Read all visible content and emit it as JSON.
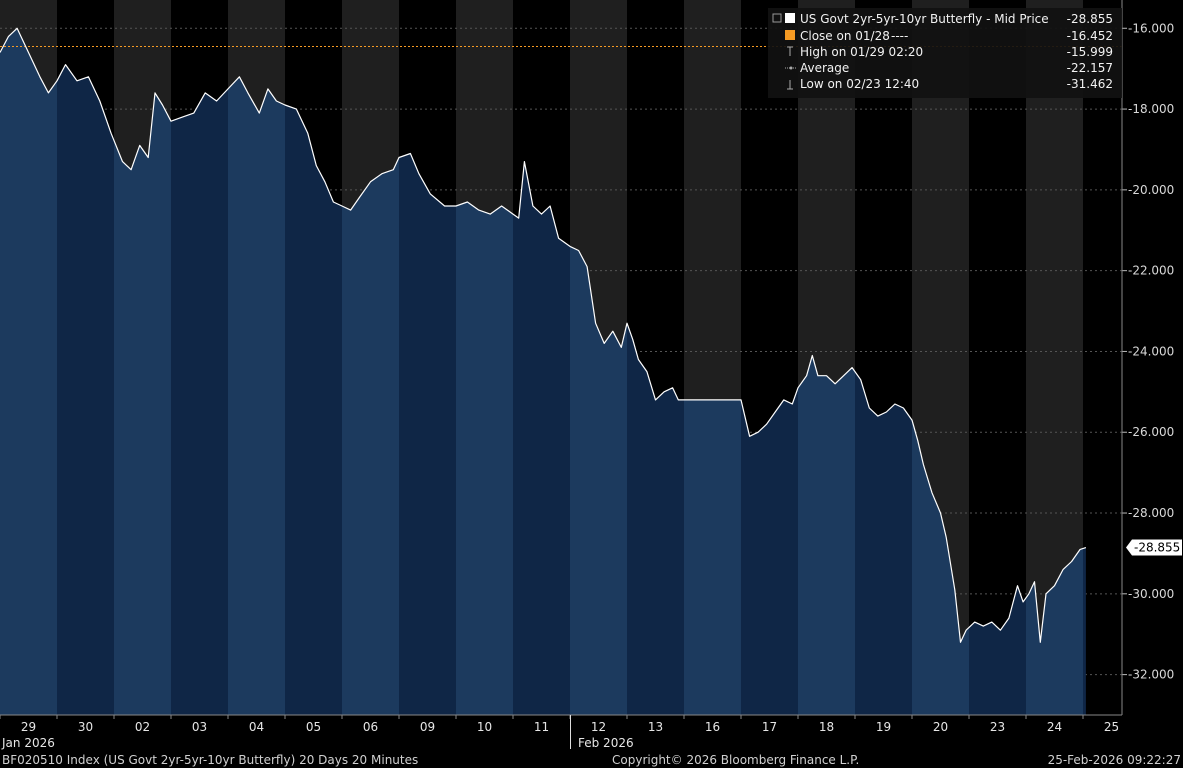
{
  "colors": {
    "background": "#000000",
    "band_even": "#1f1f1f",
    "band_odd": "#000000",
    "area_fill": "#0f2646",
    "area_fill_light": "#1c3a5e",
    "line": "#ffffff",
    "close_line": "#f59a23",
    "grid": "#555555"
  },
  "legend": {
    "title": "US Govt 2yr-5yr-10yr Butterfly - Mid Price",
    "title_value": "-28.855",
    "close_label": "Close on 01/28",
    "close_dash": "----",
    "close_value": "-16.452",
    "high_label": "High on 01/29 02:20",
    "high_value": "-15.999",
    "average_label": "Average",
    "average_value": "-22.157",
    "low_label": "Low on 02/23 12:40",
    "low_value": "-31.462"
  },
  "last_value_tag": "-28.855",
  "footer": {
    "left": "BF020510 Index (US Govt 2yr-5yr-10yr Butterfly) 20 Days 20 Minutes",
    "center": "Copyright© 2026 Bloomberg Finance L.P.",
    "right": "25-Feb-2026 09:22:27"
  },
  "chart_data": {
    "type": "line",
    "title": "US Govt 2yr-5yr-10yr Butterfly - Mid Price",
    "ylim": [
      -33,
      -15.3
    ],
    "y_ticks": [
      -16,
      -18,
      -20,
      -22,
      -24,
      -26,
      -28,
      -30,
      -32
    ],
    "y_tick_labels": [
      "-16.000",
      "-18.000",
      "-20.000",
      "-22.000",
      "-24.000",
      "-26.000",
      "-28.000",
      "-30.000",
      "-32.000"
    ],
    "close_level": -16.452,
    "grid": true,
    "legend_position": "top-right",
    "days": [
      "29",
      "30",
      "02",
      "03",
      "04",
      "05",
      "06",
      "09",
      "10",
      "11",
      "12",
      "13",
      "16",
      "17",
      "18",
      "19",
      "20",
      "23",
      "24",
      "25"
    ],
    "month_labels": [
      {
        "label": "Jan 2026",
        "day_index": 0
      },
      {
        "label": "Feb 2026",
        "day_index": 10
      }
    ],
    "series": [
      {
        "name": "US Govt 2yr-5yr-10yr Butterfly - Mid Price",
        "points": [
          [
            0.0,
            -16.6
          ],
          [
            0.15,
            -16.2
          ],
          [
            0.3,
            -16.0
          ],
          [
            0.5,
            -16.6
          ],
          [
            0.7,
            -17.2
          ],
          [
            0.85,
            -17.6
          ],
          [
            1.0,
            -17.3
          ],
          [
            1.15,
            -16.9
          ],
          [
            1.35,
            -17.3
          ],
          [
            1.55,
            -17.2
          ],
          [
            1.75,
            -17.8
          ],
          [
            1.95,
            -18.6
          ],
          [
            2.15,
            -19.3
          ],
          [
            2.3,
            -19.5
          ],
          [
            2.45,
            -18.9
          ],
          [
            2.6,
            -19.2
          ],
          [
            2.72,
            -17.6
          ],
          [
            2.85,
            -17.9
          ],
          [
            3.0,
            -18.3
          ],
          [
            3.2,
            -18.2
          ],
          [
            3.4,
            -18.1
          ],
          [
            3.6,
            -17.6
          ],
          [
            3.8,
            -17.8
          ],
          [
            4.0,
            -17.5
          ],
          [
            4.2,
            -17.2
          ],
          [
            4.35,
            -17.6
          ],
          [
            4.55,
            -18.1
          ],
          [
            4.7,
            -17.5
          ],
          [
            4.85,
            -17.8
          ],
          [
            5.0,
            -17.9
          ],
          [
            5.2,
            -18.0
          ],
          [
            5.4,
            -18.6
          ],
          [
            5.55,
            -19.4
          ],
          [
            5.7,
            -19.8
          ],
          [
            5.85,
            -20.3
          ],
          [
            6.0,
            -20.4
          ],
          [
            6.15,
            -20.5
          ],
          [
            6.3,
            -20.2
          ],
          [
            6.5,
            -19.8
          ],
          [
            6.7,
            -19.6
          ],
          [
            6.9,
            -19.5
          ],
          [
            7.0,
            -19.2
          ],
          [
            7.2,
            -19.1
          ],
          [
            7.35,
            -19.6
          ],
          [
            7.55,
            -20.1
          ],
          [
            7.8,
            -20.4
          ],
          [
            8.0,
            -20.4
          ],
          [
            8.2,
            -20.3
          ],
          [
            8.4,
            -20.5
          ],
          [
            8.6,
            -20.6
          ],
          [
            8.8,
            -20.4
          ],
          [
            9.0,
            -20.6
          ],
          [
            9.1,
            -20.7
          ],
          [
            9.2,
            -19.3
          ],
          [
            9.35,
            -20.4
          ],
          [
            9.5,
            -20.6
          ],
          [
            9.65,
            -20.4
          ],
          [
            9.8,
            -21.2
          ],
          [
            10.0,
            -21.4
          ],
          [
            10.15,
            -21.5
          ],
          [
            10.3,
            -21.9
          ],
          [
            10.45,
            -23.3
          ],
          [
            10.6,
            -23.8
          ],
          [
            10.75,
            -23.5
          ],
          [
            10.9,
            -23.9
          ],
          [
            11.0,
            -23.3
          ],
          [
            11.1,
            -23.7
          ],
          [
            11.2,
            -24.2
          ],
          [
            11.35,
            -24.5
          ],
          [
            11.5,
            -25.2
          ],
          [
            11.65,
            -25.0
          ],
          [
            11.8,
            -24.9
          ],
          [
            11.9,
            -25.2
          ],
          [
            12.0,
            -25.2
          ],
          [
            12.3,
            -25.2
          ],
          [
            12.6,
            -25.2
          ],
          [
            12.9,
            -25.2
          ],
          [
            13.0,
            -25.2
          ],
          [
            13.15,
            -26.1
          ],
          [
            13.3,
            -26.0
          ],
          [
            13.45,
            -25.8
          ],
          [
            13.6,
            -25.5
          ],
          [
            13.75,
            -25.2
          ],
          [
            13.9,
            -25.3
          ],
          [
            14.0,
            -24.9
          ],
          [
            14.15,
            -24.6
          ],
          [
            14.25,
            -24.1
          ],
          [
            14.35,
            -24.6
          ],
          [
            14.5,
            -24.6
          ],
          [
            14.65,
            -24.8
          ],
          [
            14.8,
            -24.6
          ],
          [
            14.95,
            -24.4
          ],
          [
            15.1,
            -24.7
          ],
          [
            15.25,
            -25.4
          ],
          [
            15.4,
            -25.6
          ],
          [
            15.55,
            -25.5
          ],
          [
            15.7,
            -25.3
          ],
          [
            15.85,
            -25.4
          ],
          [
            16.0,
            -25.7
          ],
          [
            16.1,
            -26.2
          ],
          [
            16.2,
            -26.8
          ],
          [
            16.35,
            -27.5
          ],
          [
            16.5,
            -28.0
          ],
          [
            16.6,
            -28.6
          ],
          [
            16.75,
            -29.9
          ],
          [
            16.85,
            -31.2
          ],
          [
            16.95,
            -30.9
          ],
          [
            17.1,
            -30.7
          ],
          [
            17.25,
            -30.8
          ],
          [
            17.4,
            -30.7
          ],
          [
            17.55,
            -30.9
          ],
          [
            17.7,
            -30.6
          ],
          [
            17.85,
            -29.8
          ],
          [
            17.95,
            -30.2
          ],
          [
            18.05,
            -30.0
          ],
          [
            18.15,
            -29.7
          ],
          [
            18.25,
            -31.2
          ],
          [
            18.35,
            -30.0
          ],
          [
            18.5,
            -29.8
          ],
          [
            18.65,
            -29.4
          ],
          [
            18.8,
            -29.2
          ],
          [
            18.95,
            -28.9
          ],
          [
            19.05,
            -28.855
          ]
        ]
      }
    ]
  }
}
